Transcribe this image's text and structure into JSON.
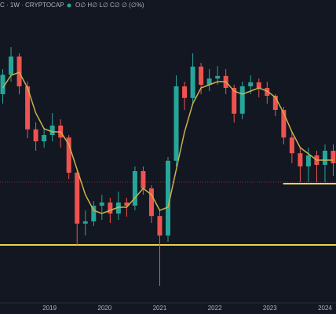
{
  "header": {
    "symbol": "C · 1W · CRYPTOCAP",
    "ohlc": "O∅ H∅ L∅ C∅ ∅ (∅%)"
  },
  "chart_data": {
    "type": "candlestick",
    "x": [
      2018.15,
      2018.3,
      2018.45,
      2018.6,
      2018.75,
      2018.9,
      2019.05,
      2019.2,
      2019.35,
      2019.5,
      2019.65,
      2019.8,
      2019.95,
      2020.1,
      2020.25,
      2020.4,
      2020.55,
      2020.7,
      2020.85,
      2021.0,
      2021.15,
      2021.3,
      2021.45,
      2021.6,
      2021.75,
      2021.9,
      2022.05,
      2022.2,
      2022.35,
      2022.5,
      2022.65,
      2022.8,
      2022.95,
      2023.1,
      2023.25,
      2023.4,
      2023.55,
      2023.7,
      2023.85,
      2024.0,
      2024.15
    ],
    "open": [
      70,
      76.2,
      82,
      72.5,
      58.8,
      55,
      57,
      60,
      56.2,
      45,
      28.8,
      29.5,
      34.5,
      35.5,
      32,
      35.5,
      34.5,
      45.5,
      40,
      31.2,
      25,
      48.8,
      72.5,
      68.8,
      78.8,
      73,
      75,
      75.8,
      72,
      63.8,
      72.5,
      73.8,
      72,
      69.5,
      65,
      56.2,
      51.2,
      47,
      50.5,
      47.5,
      52
    ],
    "high": [
      78,
      85,
      83,
      74,
      61,
      59,
      64,
      62,
      57,
      46,
      33,
      36,
      38,
      37,
      39,
      37,
      47,
      47,
      41,
      33,
      50,
      76,
      74,
      83,
      80,
      78,
      79,
      78,
      73,
      74,
      76,
      75,
      74,
      70,
      66,
      58,
      53,
      53,
      52,
      54,
      54
    ],
    "low": [
      67,
      74,
      70,
      56,
      52,
      53,
      55,
      53,
      43,
      22,
      25,
      28,
      30,
      29,
      30,
      31,
      33,
      38,
      29,
      9,
      23,
      47,
      65,
      67,
      70,
      71,
      73,
      70,
      61,
      62,
      70,
      69,
      67,
      63,
      54,
      48,
      42,
      42,
      42,
      42,
      44
    ],
    "close": [
      76.2,
      82,
      72.5,
      58.8,
      55,
      57,
      60,
      56.2,
      45,
      28.8,
      29.5,
      34.5,
      35.5,
      32,
      35.5,
      34.5,
      45.5,
      40,
      31.2,
      25,
      48.8,
      72.5,
      68.8,
      78.8,
      73,
      75,
      75.8,
      72,
      63.8,
      72.5,
      73.8,
      72,
      69.5,
      65,
      56.2,
      51.2,
      47,
      50.5,
      47.5,
      52,
      48
    ],
    "up_color": "#26a69a",
    "down_color": "#ef5350",
    "overlay": {
      "color": "#c9b24a",
      "values": [
        72,
        76,
        77,
        72,
        64,
        59,
        58,
        58,
        54,
        46,
        38,
        33,
        32,
        33,
        34,
        34,
        37,
        40,
        38,
        33,
        34,
        46,
        58,
        67,
        72,
        73,
        74,
        74,
        71,
        70,
        71,
        72,
        71,
        69,
        64,
        58,
        53,
        51,
        49,
        49,
        49
      ]
    },
    "levels": [
      {
        "value": 22,
        "color": "#e8d44d"
      },
      {
        "value": 42,
        "color": "#b2393a",
        "dash": true
      },
      {
        "value": 41.5,
        "from": 2023.24,
        "color": "#e8d44d"
      }
    ],
    "xlim": [
      2018.1,
      2024.2
    ],
    "ylim": [
      0,
      100
    ],
    "xticks": [
      2019,
      2020,
      2021,
      2022,
      2023,
      2024
    ]
  }
}
